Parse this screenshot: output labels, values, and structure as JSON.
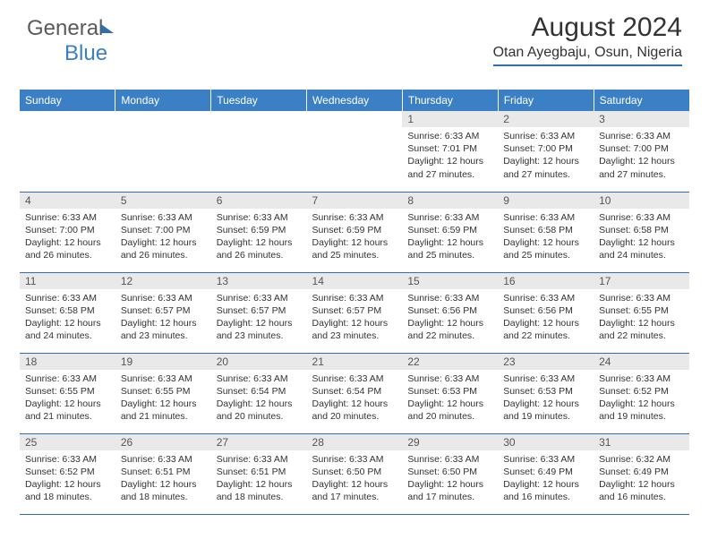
{
  "logo": {
    "part1": "General",
    "part2": "Blue"
  },
  "header": {
    "title": "August 2024",
    "location": "Otan Ayegbaju, Osun, Nigeria"
  },
  "weekdays": [
    "Sunday",
    "Monday",
    "Tuesday",
    "Wednesday",
    "Thursday",
    "Friday",
    "Saturday"
  ],
  "colors": {
    "accent": "#3b7fc4",
    "rule": "#2f6fb0",
    "daynum_bg": "#e9e9e9",
    "text": "#333333"
  },
  "startOffset": 4,
  "days": [
    {
      "n": "1",
      "sunrise": "6:33 AM",
      "sunset": "7:01 PM",
      "daylight": "12 hours and 27 minutes."
    },
    {
      "n": "2",
      "sunrise": "6:33 AM",
      "sunset": "7:00 PM",
      "daylight": "12 hours and 27 minutes."
    },
    {
      "n": "3",
      "sunrise": "6:33 AM",
      "sunset": "7:00 PM",
      "daylight": "12 hours and 27 minutes."
    },
    {
      "n": "4",
      "sunrise": "6:33 AM",
      "sunset": "7:00 PM",
      "daylight": "12 hours and 26 minutes."
    },
    {
      "n": "5",
      "sunrise": "6:33 AM",
      "sunset": "7:00 PM",
      "daylight": "12 hours and 26 minutes."
    },
    {
      "n": "6",
      "sunrise": "6:33 AM",
      "sunset": "6:59 PM",
      "daylight": "12 hours and 26 minutes."
    },
    {
      "n": "7",
      "sunrise": "6:33 AM",
      "sunset": "6:59 PM",
      "daylight": "12 hours and 25 minutes."
    },
    {
      "n": "8",
      "sunrise": "6:33 AM",
      "sunset": "6:59 PM",
      "daylight": "12 hours and 25 minutes."
    },
    {
      "n": "9",
      "sunrise": "6:33 AM",
      "sunset": "6:58 PM",
      "daylight": "12 hours and 25 minutes."
    },
    {
      "n": "10",
      "sunrise": "6:33 AM",
      "sunset": "6:58 PM",
      "daylight": "12 hours and 24 minutes."
    },
    {
      "n": "11",
      "sunrise": "6:33 AM",
      "sunset": "6:58 PM",
      "daylight": "12 hours and 24 minutes."
    },
    {
      "n": "12",
      "sunrise": "6:33 AM",
      "sunset": "6:57 PM",
      "daylight": "12 hours and 23 minutes."
    },
    {
      "n": "13",
      "sunrise": "6:33 AM",
      "sunset": "6:57 PM",
      "daylight": "12 hours and 23 minutes."
    },
    {
      "n": "14",
      "sunrise": "6:33 AM",
      "sunset": "6:57 PM",
      "daylight": "12 hours and 23 minutes."
    },
    {
      "n": "15",
      "sunrise": "6:33 AM",
      "sunset": "6:56 PM",
      "daylight": "12 hours and 22 minutes."
    },
    {
      "n": "16",
      "sunrise": "6:33 AM",
      "sunset": "6:56 PM",
      "daylight": "12 hours and 22 minutes."
    },
    {
      "n": "17",
      "sunrise": "6:33 AM",
      "sunset": "6:55 PM",
      "daylight": "12 hours and 22 minutes."
    },
    {
      "n": "18",
      "sunrise": "6:33 AM",
      "sunset": "6:55 PM",
      "daylight": "12 hours and 21 minutes."
    },
    {
      "n": "19",
      "sunrise": "6:33 AM",
      "sunset": "6:55 PM",
      "daylight": "12 hours and 21 minutes."
    },
    {
      "n": "20",
      "sunrise": "6:33 AM",
      "sunset": "6:54 PM",
      "daylight": "12 hours and 20 minutes."
    },
    {
      "n": "21",
      "sunrise": "6:33 AM",
      "sunset": "6:54 PM",
      "daylight": "12 hours and 20 minutes."
    },
    {
      "n": "22",
      "sunrise": "6:33 AM",
      "sunset": "6:53 PM",
      "daylight": "12 hours and 20 minutes."
    },
    {
      "n": "23",
      "sunrise": "6:33 AM",
      "sunset": "6:53 PM",
      "daylight": "12 hours and 19 minutes."
    },
    {
      "n": "24",
      "sunrise": "6:33 AM",
      "sunset": "6:52 PM",
      "daylight": "12 hours and 19 minutes."
    },
    {
      "n": "25",
      "sunrise": "6:33 AM",
      "sunset": "6:52 PM",
      "daylight": "12 hours and 18 minutes."
    },
    {
      "n": "26",
      "sunrise": "6:33 AM",
      "sunset": "6:51 PM",
      "daylight": "12 hours and 18 minutes."
    },
    {
      "n": "27",
      "sunrise": "6:33 AM",
      "sunset": "6:51 PM",
      "daylight": "12 hours and 18 minutes."
    },
    {
      "n": "28",
      "sunrise": "6:33 AM",
      "sunset": "6:50 PM",
      "daylight": "12 hours and 17 minutes."
    },
    {
      "n": "29",
      "sunrise": "6:33 AM",
      "sunset": "6:50 PM",
      "daylight": "12 hours and 17 minutes."
    },
    {
      "n": "30",
      "sunrise": "6:33 AM",
      "sunset": "6:49 PM",
      "daylight": "12 hours and 16 minutes."
    },
    {
      "n": "31",
      "sunrise": "6:32 AM",
      "sunset": "6:49 PM",
      "daylight": "12 hours and 16 minutes."
    }
  ]
}
